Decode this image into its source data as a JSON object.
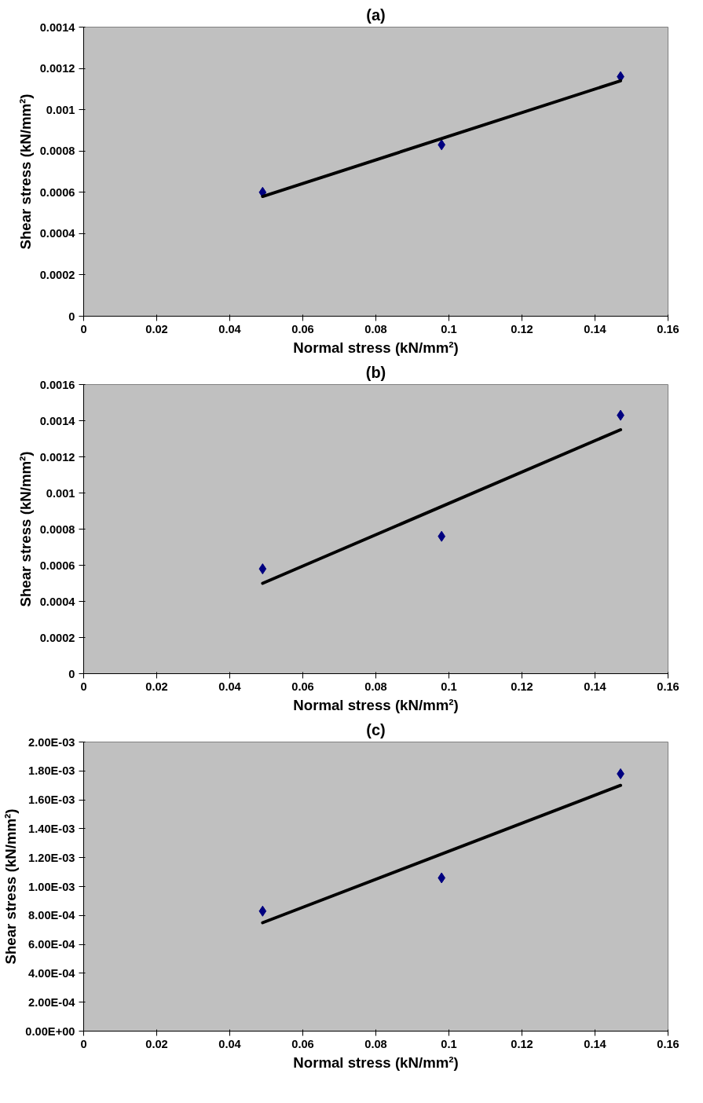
{
  "chart_data": [
    {
      "type": "scatter",
      "title": "(a)",
      "xlabel": "Normal stress (kN/mm²)",
      "ylabel": "Shear stress (kN/mm²)",
      "grid": false,
      "xlim": [
        0,
        0.16
      ],
      "xticks": [
        0,
        0.02,
        0.04,
        0.06,
        0.08,
        0.1,
        0.12,
        0.14,
        0.16
      ],
      "ylim": [
        0,
        0.0014
      ],
      "yticks": [
        0,
        0.0002,
        0.0004,
        0.0006,
        0.0008,
        0.001,
        0.0012,
        0.0014
      ],
      "series": [
        {
          "marker": "diamond",
          "color": "#000080",
          "x": [
            0.049,
            0.098,
            0.147
          ],
          "values": [
            0.0006,
            0.00083,
            0.00116
          ]
        },
        {
          "type": "line",
          "marker": "none",
          "color": "#000000",
          "x": [
            0.049,
            0.147
          ],
          "values": [
            0.00058,
            0.00114
          ]
        }
      ]
    },
    {
      "type": "scatter",
      "title": "(b)",
      "xlabel": "Normal stress (kN/mm²)",
      "ylabel": "Shear stress (kN/mm²)",
      "grid": false,
      "xlim": [
        0,
        0.16
      ],
      "xticks": [
        0,
        0.02,
        0.04,
        0.06,
        0.08,
        0.1,
        0.12,
        0.14,
        0.16
      ],
      "ylim": [
        0,
        0.0016
      ],
      "yticks": [
        0,
        0.0002,
        0.0004,
        0.0006,
        0.0008,
        0.001,
        0.0012,
        0.0014,
        0.0016
      ],
      "series": [
        {
          "marker": "diamond",
          "color": "#000080",
          "x": [
            0.049,
            0.098,
            0.147
          ],
          "values": [
            0.00058,
            0.00076,
            0.00143
          ]
        },
        {
          "type": "line",
          "marker": "none",
          "color": "#000000",
          "x": [
            0.049,
            0.147
          ],
          "values": [
            0.0005,
            0.00135
          ]
        }
      ]
    },
    {
      "type": "scatter",
      "title": "(c)",
      "xlabel": "Normal stress (kN/mm²)",
      "ylabel": "Shear stress (kN/mm²)",
      "grid": false,
      "xlim": [
        0,
        0.16
      ],
      "xticks": [
        0,
        0.02,
        0.04,
        0.06,
        0.08,
        0.1,
        0.12,
        0.14,
        0.16
      ],
      "ylim": [
        0,
        0.002
      ],
      "yticks": [
        {
          "value": 0,
          "label": "0.00E+00"
        },
        {
          "value": 0.0002,
          "label": "2.00E-04"
        },
        {
          "value": 0.0004,
          "label": "4.00E-04"
        },
        {
          "value": 0.0006,
          "label": "6.00E-04"
        },
        {
          "value": 0.0008,
          "label": "8.00E-04"
        },
        {
          "value": 0.001,
          "label": "1.00E-03"
        },
        {
          "value": 0.0012,
          "label": "1.20E-03"
        },
        {
          "value": 0.0014,
          "label": "1.40E-03"
        },
        {
          "value": 0.0016,
          "label": "1.60E-03"
        },
        {
          "value": 0.0018,
          "label": "1.80E-03"
        },
        {
          "value": 0.002,
          "label": "2.00E-03"
        }
      ],
      "series": [
        {
          "marker": "diamond",
          "color": "#000080",
          "x": [
            0.049,
            0.098,
            0.147
          ],
          "values": [
            0.00083,
            0.00106,
            0.00178
          ]
        },
        {
          "type": "line",
          "marker": "none",
          "color": "#000000",
          "x": [
            0.049,
            0.147
          ],
          "values": [
            0.00075,
            0.0017
          ]
        }
      ]
    }
  ]
}
